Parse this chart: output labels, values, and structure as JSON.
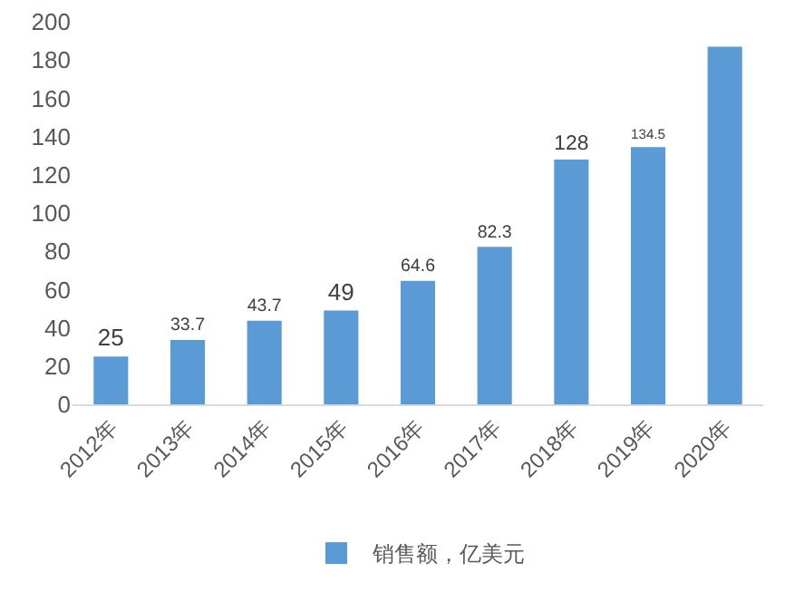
{
  "chart_data": {
    "type": "bar",
    "categories": [
      "2012年",
      "2013年",
      "2014年",
      "2015年",
      "2016年",
      "2017年",
      "2018年",
      "2019年",
      "2020年"
    ],
    "series": [
      {
        "name": "销售额，亿美元",
        "color": "#5b9bd5",
        "values": [
          25,
          33.7,
          43.7,
          49,
          64.6,
          82.3,
          128,
          134.5,
          187
        ],
        "value_labels": [
          "25",
          "33.7",
          "43.7",
          "49",
          "64.6",
          "82.3",
          "128",
          "134.5",
          null
        ]
      }
    ],
    "ylim": [
      0,
      200
    ],
    "yticks": [
      0,
      20,
      40,
      60,
      80,
      100,
      120,
      140,
      160,
      180,
      200
    ],
    "grid": false,
    "legend": "bottom"
  }
}
